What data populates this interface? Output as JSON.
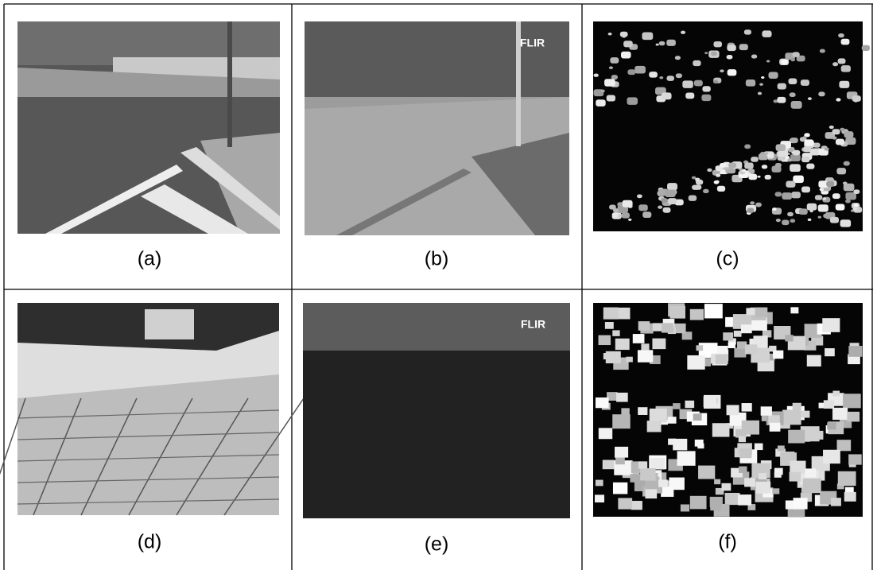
{
  "figure": {
    "panels": [
      {
        "caption": "(a)"
      },
      {
        "caption": "(b)",
        "logo": "FLIR"
      },
      {
        "caption": "(c)"
      },
      {
        "caption": "(d)"
      },
      {
        "caption": "(e)",
        "logo": "FLIR"
      },
      {
        "caption": "(f)"
      }
    ]
  }
}
